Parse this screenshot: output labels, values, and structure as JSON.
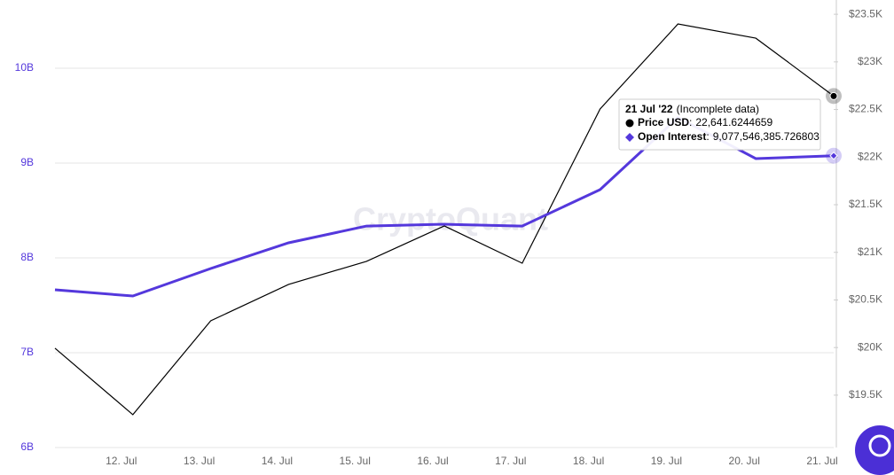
{
  "chart_data": {
    "type": "line",
    "watermark": "CryptoQuant",
    "categories": [
      null,
      "12. Jul",
      "13. Jul",
      "14. Jul",
      "15. Jul",
      "16. Jul",
      "17. Jul",
      "18. Jul",
      "19. Jul",
      "20. Jul",
      "21. Jul"
    ],
    "series": [
      {
        "name": "Price USD",
        "color": "#000000",
        "axis": "y2",
        "values": [
          19993,
          19295,
          20281,
          20663,
          20905,
          21277,
          20886,
          22505,
          23398,
          23249,
          22641.6244659
        ],
        "value_labels": [
          null,
          null,
          null,
          null,
          null,
          null,
          null,
          null,
          null,
          null,
          "22,641.6244659"
        ]
      },
      {
        "name": "Open Interest",
        "color": "#5438dc",
        "values": [
          7664000000,
          7598000000,
          7888000000,
          8159000000,
          8336000000,
          8355000000,
          8336000000,
          8720000000,
          9480000000,
          9047000000,
          9077546385.726803
        ],
        "value_labels": [
          null,
          null,
          null,
          null,
          null,
          null,
          null,
          null,
          null,
          null,
          "9,077,546,385.726803"
        ]
      }
    ],
    "ylim": [
      6000000000,
      10720000000
    ],
    "yticks": [
      {
        "value": 6000000000,
        "label": "6B"
      },
      {
        "value": 7000000000,
        "label": "7B"
      },
      {
        "value": 8000000000,
        "label": "8B"
      },
      {
        "value": 9000000000,
        "label": "9B"
      },
      {
        "value": 10000000000,
        "label": "10B"
      }
    ],
    "y2lim": [
      18950,
      23650
    ],
    "y2ticks": [
      {
        "value": 19500,
        "label": "$19.5K"
      },
      {
        "value": 20000,
        "label": "$20K"
      },
      {
        "value": 20500,
        "label": "$20.5K"
      },
      {
        "value": 21000,
        "label": "$21K"
      },
      {
        "value": 21500,
        "label": "$21.5K"
      },
      {
        "value": 22000,
        "label": "$22K"
      },
      {
        "value": 22500,
        "label": "$22.5K"
      },
      {
        "value": 23000,
        "label": "$23K"
      },
      {
        "value": 23500,
        "label": "$23.5K"
      }
    ],
    "grid": true,
    "tooltip": {
      "title": "21 Jul '22",
      "note": "(Incomplete data)",
      "separator": ":"
    }
  }
}
